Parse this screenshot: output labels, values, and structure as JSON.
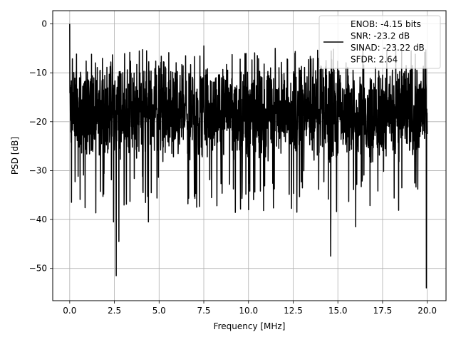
{
  "chart_data": {
    "type": "line",
    "title": "",
    "xlabel": "Frequency [MHz]",
    "ylabel": "PSD [dB]",
    "xlim": [
      -0.95,
      21.05
    ],
    "ylim": [
      -56.6,
      2.7
    ],
    "xticks": [
      0.0,
      2.5,
      5.0,
      7.5,
      10.0,
      12.5,
      15.0,
      17.5,
      20.0
    ],
    "xtick_labels": [
      "0.0",
      "2.5",
      "5.0",
      "7.5",
      "10.0",
      "12.5",
      "15.0",
      "17.5",
      "20.0"
    ],
    "yticks": [
      0,
      -10,
      -20,
      -30,
      -40,
      -50
    ],
    "ytick_labels": [
      "0",
      "−10",
      "−20",
      "−30",
      "−40",
      "−50"
    ],
    "grid": true,
    "legend_placement": "top-right",
    "series": [
      {
        "name": "ENOB: -4.15 bits\nSNR: -23.2 dB\nSINAD: -23.22 dB\nSFDR: 2.64",
        "color": "#000000",
        "x_range": [
          0,
          20
        ],
        "points": 2000,
        "typical_range": [
          -30,
          -8
        ],
        "noise_floor_level": -18,
        "peaks": [
          {
            "x": 0.0,
            "y": 0.0
          },
          {
            "x": 0.05,
            "y": -13
          },
          {
            "x": 0.1,
            "y": -36.5
          },
          {
            "x": 2.45,
            "y": -40.5
          },
          {
            "x": 2.6,
            "y": -51.5
          },
          {
            "x": 2.75,
            "y": -44.5
          },
          {
            "x": 4.4,
            "y": -40.5
          },
          {
            "x": 7.1,
            "y": -37.5
          },
          {
            "x": 10.0,
            "y": -38.0
          },
          {
            "x": 14.6,
            "y": -47.5
          },
          {
            "x": 16.0,
            "y": -41.5
          },
          {
            "x": 19.95,
            "y": -54.0
          },
          {
            "x": 4.3,
            "y": -5.5
          },
          {
            "x": 7.5,
            "y": -4.5
          },
          {
            "x": 11.5,
            "y": -5.0
          },
          {
            "x": 12.6,
            "y": -6.0
          },
          {
            "x": 16.4,
            "y": -5.0
          },
          {
            "x": 19.1,
            "y": -5.5
          }
        ]
      }
    ]
  }
}
